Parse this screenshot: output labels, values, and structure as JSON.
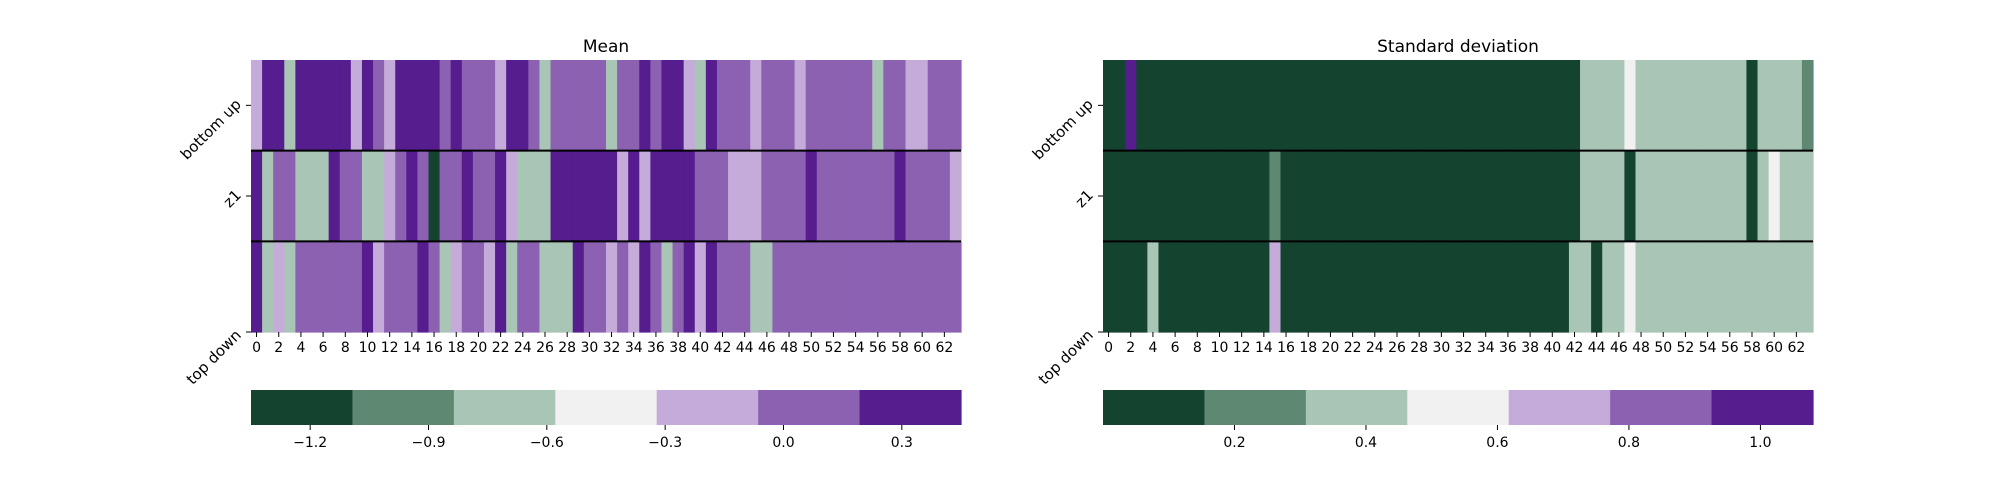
{
  "chart_data": [
    {
      "type": "heatmap",
      "title": "Mean",
      "row_labels": [
        "bottom up",
        "z1",
        "top down"
      ],
      "x_tick_labels": [
        "0",
        "2",
        "4",
        "6",
        "8",
        "10",
        "12",
        "14",
        "16",
        "18",
        "20",
        "22",
        "24",
        "26",
        "28",
        "30",
        "32",
        "34",
        "36",
        "38",
        "40",
        "42",
        "44",
        "46",
        "48",
        "50",
        "52",
        "54",
        "56",
        "58",
        "60",
        "62"
      ],
      "values": [
        [
          -0.3,
          0.3,
          0.3,
          -0.6,
          0.3,
          0.3,
          0.3,
          0.3,
          0.3,
          -0.3,
          0.3,
          0.0,
          -0.3,
          0.3,
          0.3,
          0.3,
          0.3,
          0.0,
          0.3,
          0.0,
          0.0,
          0.0,
          -0.3,
          0.3,
          0.3,
          0.0,
          -0.6,
          0.0,
          0.0,
          0.0,
          0.0,
          0.0,
          -0.6,
          0.0,
          0.0,
          0.3,
          0.0,
          0.3,
          0.3,
          -0.3,
          -0.6,
          0.3,
          0.0,
          0.0,
          0.0,
          -0.3,
          0.0,
          0.0,
          0.0,
          -0.3,
          0.0,
          0.0,
          0.0,
          0.0,
          0.0,
          0.0,
          -0.6,
          0.0,
          0.0,
          -0.3,
          -0.3,
          0.0,
          0.0,
          0.0
        ],
        [
          0.3,
          -0.6,
          0.0,
          0.0,
          -0.6,
          -0.6,
          -0.6,
          0.3,
          0.0,
          0.0,
          -0.6,
          -0.6,
          -0.3,
          0.0,
          0.3,
          0.0,
          -1.2,
          0.0,
          0.0,
          0.3,
          0.0,
          0.0,
          0.3,
          -0.3,
          -0.6,
          -0.6,
          -0.6,
          0.3,
          0.3,
          0.3,
          0.3,
          0.3,
          0.3,
          -0.3,
          0.3,
          -0.3,
          0.3,
          0.3,
          0.3,
          0.3,
          0.0,
          0.0,
          0.0,
          -0.3,
          -0.3,
          -0.3,
          0.0,
          0.0,
          0.0,
          0.0,
          0.3,
          0.0,
          0.0,
          0.0,
          0.0,
          0.0,
          0.0,
          0.0,
          0.3,
          0.0,
          0.0,
          0.0,
          0.0,
          -0.3
        ],
        [
          0.3,
          -0.6,
          -0.3,
          -0.6,
          0.0,
          0.0,
          0.0,
          0.0,
          0.0,
          0.0,
          0.3,
          -0.3,
          0.0,
          0.0,
          0.0,
          0.3,
          0.0,
          -0.6,
          -0.3,
          0.0,
          0.0,
          -0.3,
          0.3,
          -0.6,
          0.0,
          0.0,
          -0.6,
          -0.6,
          -0.6,
          0.3,
          0.0,
          0.0,
          -0.3,
          0.0,
          -0.3,
          0.3,
          0.0,
          -0.6,
          0.0,
          0.3,
          -0.3,
          0.3,
          0.0,
          0.0,
          0.0,
          -0.6,
          -0.6,
          0.0,
          0.0,
          0.0,
          0.0,
          0.0,
          0.0,
          0.0,
          0.0,
          0.0,
          0.0,
          0.0,
          0.0,
          0.0,
          0.0,
          0.0,
          0.0,
          0.0
        ]
      ],
      "colorbar": {
        "tick_values": [
          -1.2,
          -0.9,
          -0.6,
          -0.3,
          0.0,
          0.3
        ],
        "tick_labels": [
          "−1.2",
          "−0.9",
          "−0.6",
          "−0.3",
          "0.0",
          "0.3"
        ],
        "vmin": -1.35,
        "vmax": 0.45,
        "colors": [
          "#144430",
          "#5e8871",
          "#a9c5b6",
          "#f1f1f1",
          "#c4abda",
          "#8c61b2",
          "#551d8e"
        ]
      }
    },
    {
      "type": "heatmap",
      "title": "Standard deviation",
      "row_labels": [
        "bottom up",
        "z1",
        "top down"
      ],
      "x_tick_labels": [
        "0",
        "2",
        "4",
        "6",
        "8",
        "10",
        "12",
        "14",
        "16",
        "18",
        "20",
        "22",
        "24",
        "26",
        "28",
        "30",
        "32",
        "34",
        "36",
        "38",
        "40",
        "42",
        "44",
        "46",
        "48",
        "50",
        "52",
        "54",
        "56",
        "58",
        "60",
        "62"
      ],
      "values": [
        [
          0.05,
          0.05,
          1.05,
          0.05,
          0.05,
          0.05,
          0.05,
          0.05,
          0.05,
          0.05,
          0.05,
          0.05,
          0.05,
          0.05,
          0.05,
          0.05,
          0.05,
          0.05,
          0.05,
          0.05,
          0.05,
          0.05,
          0.05,
          0.05,
          0.05,
          0.05,
          0.05,
          0.05,
          0.05,
          0.05,
          0.05,
          0.05,
          0.05,
          0.05,
          0.05,
          0.05,
          0.05,
          0.05,
          0.05,
          0.05,
          0.05,
          0.05,
          0.05,
          0.4,
          0.4,
          0.4,
          0.4,
          0.6,
          0.4,
          0.4,
          0.4,
          0.4,
          0.4,
          0.4,
          0.4,
          0.4,
          0.4,
          0.4,
          0.05,
          0.4,
          0.4,
          0.4,
          0.4,
          0.2
        ],
        [
          0.05,
          0.05,
          0.05,
          0.05,
          0.05,
          0.05,
          0.05,
          0.05,
          0.05,
          0.05,
          0.05,
          0.05,
          0.05,
          0.05,
          0.05,
          0.2,
          0.05,
          0.05,
          0.05,
          0.05,
          0.05,
          0.05,
          0.05,
          0.05,
          0.05,
          0.05,
          0.05,
          0.05,
          0.05,
          0.05,
          0.05,
          0.05,
          0.05,
          0.05,
          0.05,
          0.05,
          0.05,
          0.05,
          0.05,
          0.05,
          0.05,
          0.05,
          0.05,
          0.4,
          0.4,
          0.4,
          0.4,
          0.05,
          0.4,
          0.4,
          0.4,
          0.4,
          0.4,
          0.4,
          0.4,
          0.4,
          0.4,
          0.4,
          0.05,
          0.4,
          0.6,
          0.4,
          0.4,
          0.4
        ],
        [
          0.05,
          0.05,
          0.05,
          0.05,
          0.4,
          0.05,
          0.05,
          0.05,
          0.05,
          0.05,
          0.05,
          0.05,
          0.05,
          0.05,
          0.05,
          0.75,
          0.05,
          0.05,
          0.05,
          0.05,
          0.05,
          0.05,
          0.05,
          0.05,
          0.05,
          0.05,
          0.05,
          0.05,
          0.05,
          0.05,
          0.05,
          0.05,
          0.05,
          0.05,
          0.05,
          0.05,
          0.05,
          0.05,
          0.05,
          0.05,
          0.05,
          0.05,
          0.4,
          0.4,
          0.05,
          0.4,
          0.4,
          0.6,
          0.4,
          0.4,
          0.4,
          0.4,
          0.4,
          0.4,
          0.4,
          0.4,
          0.4,
          0.4,
          0.4,
          0.4,
          0.4,
          0.4,
          0.4,
          0.4
        ]
      ],
      "colorbar": {
        "tick_values": [
          0.2,
          0.4,
          0.6,
          0.8,
          1.0
        ],
        "tick_labels": [
          "0.2",
          "0.4",
          "0.6",
          "0.8",
          "1.0"
        ],
        "vmin": 0.0,
        "vmax": 1.08,
        "colors": [
          "#144430",
          "#5e8871",
          "#a9c5b6",
          "#f1f1f1",
          "#c4abda",
          "#8c61b2",
          "#551d8e"
        ]
      }
    }
  ]
}
